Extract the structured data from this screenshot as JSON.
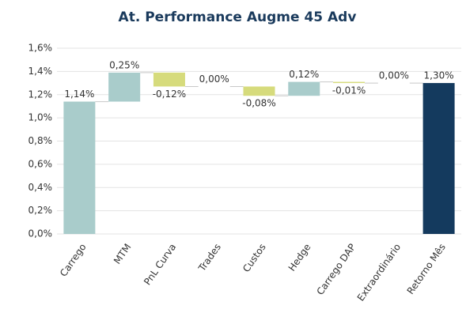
{
  "chart_data": {
    "type": "waterfall",
    "title": "At. Performance Augme 45 Adv",
    "categories": [
      "Carrego",
      "MTM",
      "PnL Curva",
      "Trades",
      "Custos",
      "Hedge",
      "Carrego DAP",
      "Extraordinário",
      "Retorno Mês"
    ],
    "values": [
      1.14,
      0.25,
      -0.12,
      0.0,
      -0.08,
      0.12,
      -0.01,
      0.0,
      1.3
    ],
    "value_labels": [
      "1,14%",
      "0,25%",
      "-0,12%",
      "0,00%",
      "-0,08%",
      "0,12%",
      "-0,01%",
      "0,00%",
      "1,30%"
    ],
    "measure": [
      "absolute",
      "relative",
      "relative",
      "relative",
      "relative",
      "relative",
      "relative",
      "relative",
      "total"
    ],
    "colors": {
      "increase": "#a9cccb",
      "decrease": "#d6db7c",
      "total": "#143a5e"
    },
    "ylim": [
      0,
      1.6
    ],
    "yticks": [
      {
        "value": 0,
        "label": "0,0%"
      },
      {
        "value": 0.2,
        "label": "0,2%"
      },
      {
        "value": 0.4,
        "label": "0,4%"
      },
      {
        "value": 0.6,
        "label": "0,6%"
      },
      {
        "value": 0.8,
        "label": "0,8%"
      },
      {
        "value": 1.0,
        "label": "1,0%"
      },
      {
        "value": 1.2,
        "label": "1,2%"
      },
      {
        "value": 1.4,
        "label": "1,4%"
      },
      {
        "value": 1.6,
        "label": "1,6%"
      }
    ],
    "grid": true
  }
}
